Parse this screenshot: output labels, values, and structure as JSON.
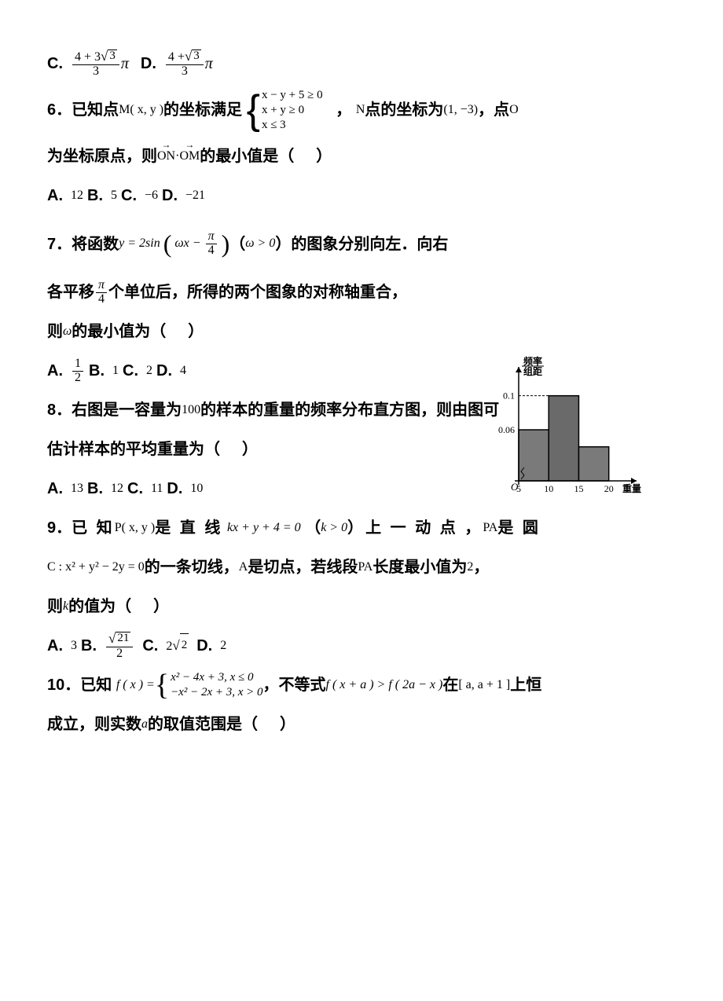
{
  "q5opts": {
    "C": "C.",
    "D": "D.",
    "frac1_num_a": "4 + 3",
    "frac1_rad": "3",
    "frac1_den": "3",
    "pi": "π",
    "frac2_num_a": "4 +",
    "frac2_rad": "3",
    "frac2_den": "3"
  },
  "q6": {
    "num": "6．",
    "t1": "已知点",
    "M": "M",
    "Mxy": "( x, y )",
    "t2": "的坐标满足",
    "sys1": "x − y + 5 ≥ 0",
    "sys2": "x + y ≥ 0",
    "sys3": "x ≤ 3",
    "t3": "，",
    "N": "N",
    "t4": "点的坐标为",
    "Ncoord": "(1, −3)",
    "t5": "，点",
    "O": "O",
    "t6": "为坐标原点，则",
    "ON": "ON",
    "dot": "·",
    "OM": "OM",
    "t7": "的最小值是（",
    "t8": "）",
    "A": "A.",
    "Av": "12",
    "B": "B.",
    "Bv": "5",
    "C": "C.",
    "Cv": "−6",
    "D": "D.",
    "Dv": "−21"
  },
  "q7": {
    "num": "7．",
    "t1": "将函数",
    "y": "y = 2sin",
    "inner_a": "ωx −",
    "inner_pi": "π",
    "inner_den": "4",
    "t2": "（",
    "cond": "ω > 0",
    "t3": "）的图象分别向左．向右",
    "t4": "各平移",
    "shift_pi": "π",
    "shift_den": "4",
    "t5": "个单位后，所得的两个图象的对称轴重合，",
    "t6": "则",
    "omega": "ω",
    "t7": "的最小值为（",
    "t8": "）",
    "A": "A.",
    "Anum": "1",
    "Aden": "2",
    "B": "B.",
    "Bv": "1",
    "C": "C.",
    "Cv": "2",
    "D": "D.",
    "Dv": "4"
  },
  "chart": {
    "ylabel1": "频率",
    "ylabel2": "组距",
    "xlabel": "重量",
    "yticks": [
      "0.06",
      "0.1"
    ],
    "xticks": [
      "5",
      "10",
      "15",
      "20"
    ],
    "bars": [
      {
        "x": 5,
        "w": 5,
        "h": 0.06,
        "fill": "#7a7a7a"
      },
      {
        "x": 10,
        "w": 5,
        "h": 0.1,
        "fill": "#6a6a6a"
      },
      {
        "x": 15,
        "w": 5,
        "h": 0.04,
        "fill": "#7a7a7a"
      }
    ],
    "axis_color": "#000",
    "bg": "#fff"
  },
  "q8": {
    "num": "8．",
    "t1": "右图是一容量为",
    "n": "100",
    "t2": "的样本的重量的频率分布直方图，则由图可",
    "t3": "估计样本的平均重量为（",
    "t4": "）",
    "A": "A.",
    "Av": "13",
    "B": "B.",
    "Bv": "12",
    "C": "C.",
    "Cv": "11",
    "D": "D.",
    "Dv": "10"
  },
  "q9": {
    "num": "9．",
    "t1": "已 知",
    "P": "P",
    "Pxy": "( x, y )",
    "t2": "是 直 线",
    "line": "kx + y + 4 = 0",
    "t3": "（",
    "kcond": "k > 0",
    "t4": "）上 一 动 点 ，",
    "PA": "PA",
    "t5": "是 圆",
    "Ceq": "C : x² + y² − 2y = 0",
    "t6": "的一条切线，",
    "Apt": "A",
    "t7": "是切点，若线段",
    "PA2": "PA",
    "t8": "长度最小值为",
    "two": "2",
    "t9": "，",
    "t10": "则",
    "k": "k",
    "t11": "的值为（",
    "t12": "）",
    "A": "A.",
    "Av": "3",
    "B": "B.",
    "Brad": "21",
    "Bden": "2",
    "C": "C.",
    "Cpre": "2",
    "Crad": "2",
    "D": "D.",
    "Dv": "2"
  },
  "q10": {
    "num": "10．",
    "t1": "已知",
    "f": "f ( x ) =",
    "row1": "x² − 4x + 3, x ≤ 0",
    "row2": "−x² − 2x + 3, x > 0",
    "t2": "，不等式",
    "ineq": "f ( x + a ) > f ( 2a − x )",
    "t3": "在",
    "intv": "[ a, a + 1 ]",
    "t4": "上恒",
    "t5": "成立，则实数",
    "a": "a",
    "t6": "的取值范围是（",
    "t7": "）"
  }
}
